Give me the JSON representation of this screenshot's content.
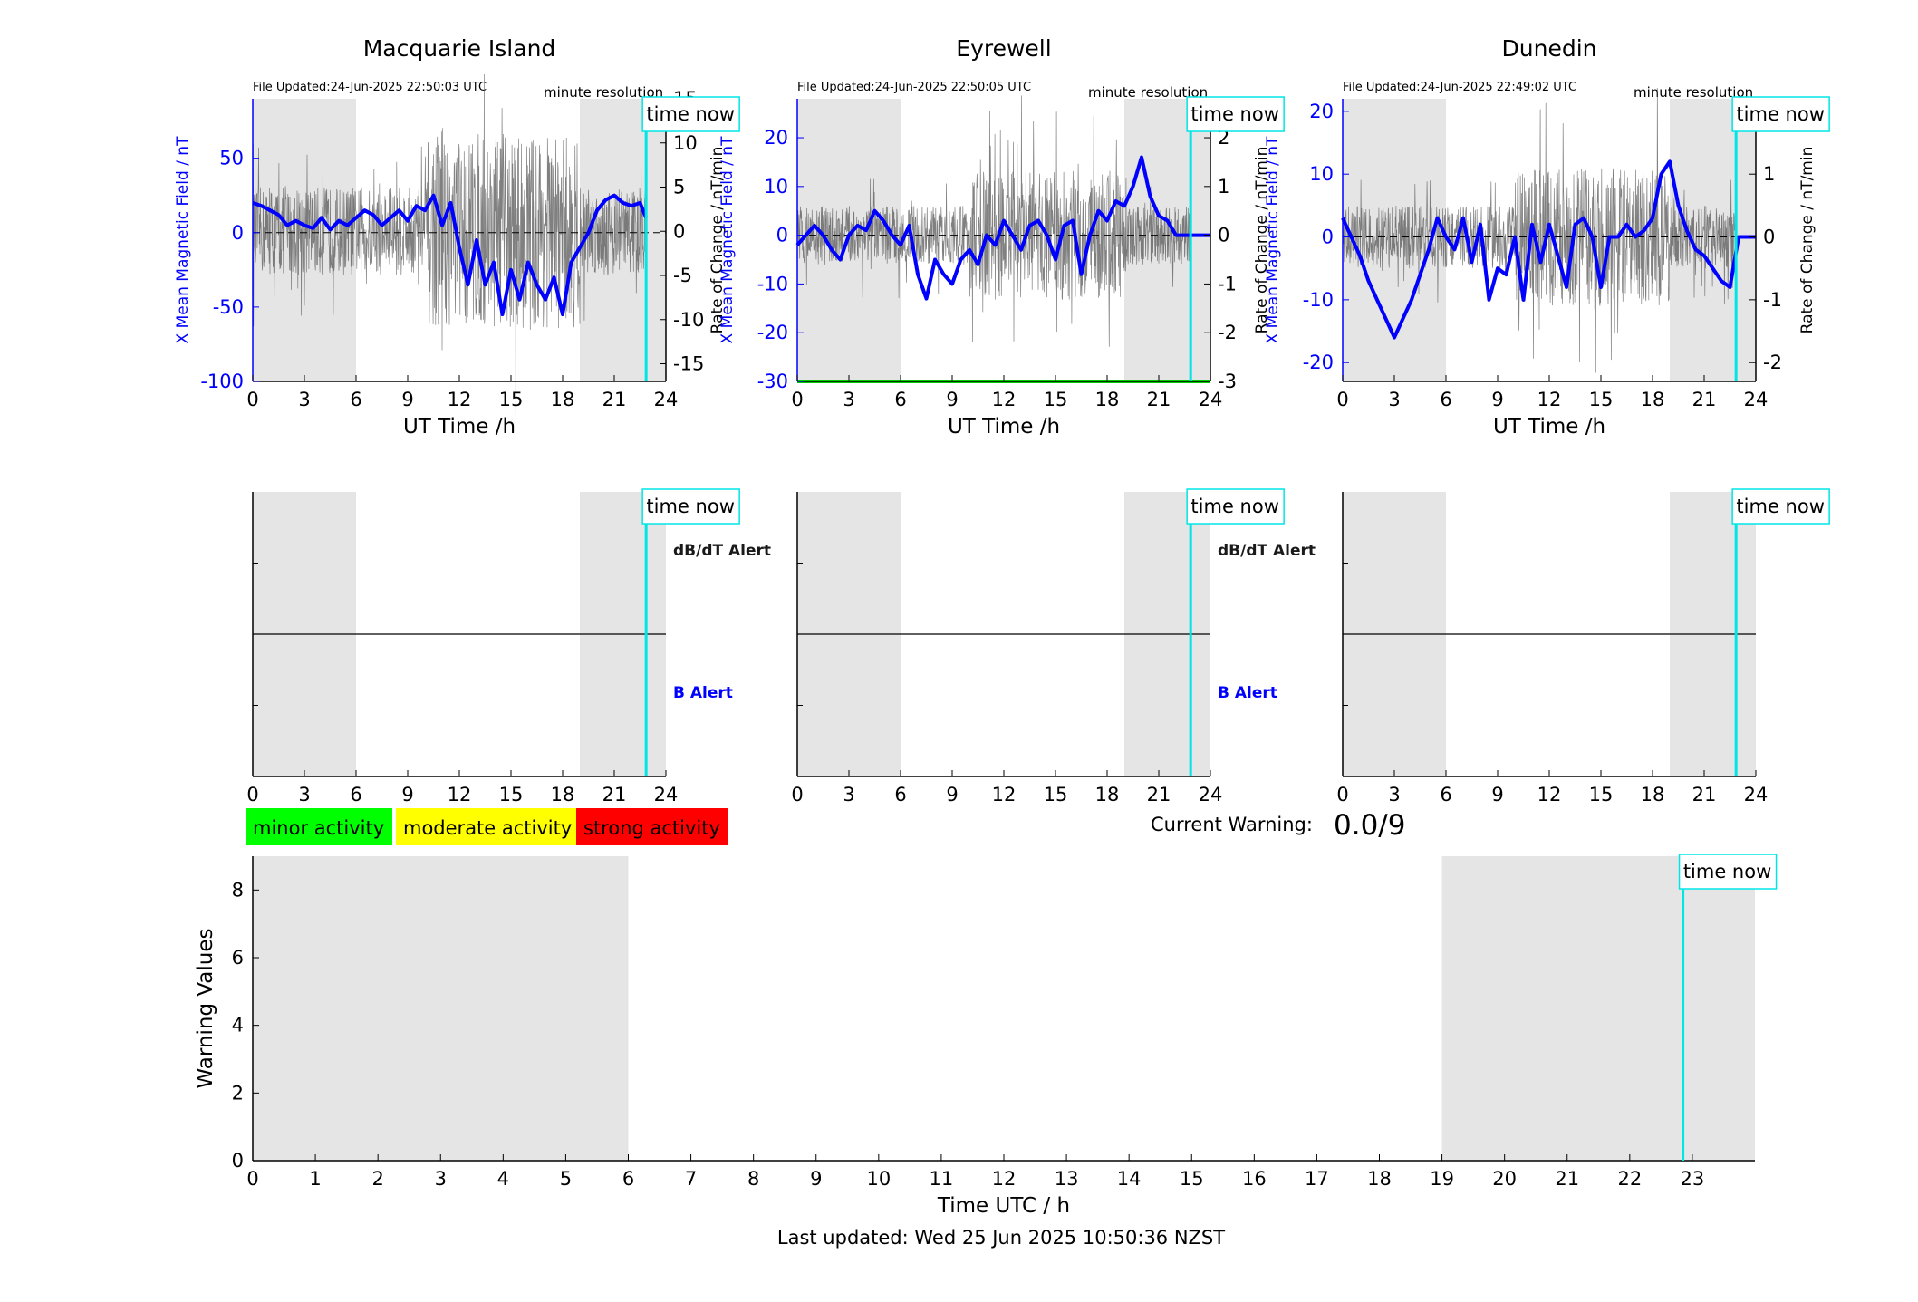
{
  "stations": [
    {
      "name": "Macquarie Island",
      "file_updated": "File Updated:24-Jun-2025 22:50:03 UTC",
      "resolution": "minute resolution",
      "left_ylabel": "X Mean Magnetic Field / nT",
      "right_ylabel": "Rate of Change / nT/min",
      "left_ylim": [
        -100,
        90
      ],
      "left_ticks": [
        -100,
        -50,
        0,
        50
      ],
      "right_ylim": [
        -17,
        15
      ],
      "right_ticks": [
        -15,
        -10,
        -5,
        0,
        5,
        10,
        15
      ],
      "x_series_hours": [
        0,
        0.5,
        1,
        1.5,
        2,
        2.5,
        3,
        3.5,
        4,
        4.5,
        5,
        5.5,
        6,
        6.5,
        7,
        7.5,
        8,
        8.5,
        9,
        9.5,
        10,
        10.5,
        11,
        11.5,
        12,
        12.5,
        13,
        13.5,
        14,
        14.5,
        15,
        15.5,
        16,
        16.5,
        17,
        17.5,
        18,
        18.5,
        19,
        19.5,
        20,
        20.5,
        21,
        21.5,
        22,
        22.5,
        22.85
      ],
      "x_series_values": [
        20,
        18,
        15,
        12,
        5,
        8,
        5,
        3,
        10,
        2,
        8,
        5,
        10,
        15,
        12,
        5,
        10,
        15,
        8,
        18,
        15,
        25,
        5,
        20,
        -10,
        -35,
        -5,
        -35,
        -20,
        -55,
        -25,
        -45,
        -20,
        -35,
        -45,
        -30,
        -55,
        -20,
        -10,
        0,
        15,
        22,
        25,
        20,
        18,
        20,
        10
      ],
      "roc_amplitude": 5,
      "green_line": false
    },
    {
      "name": "Eyrewell",
      "file_updated": "File Updated:24-Jun-2025 22:50:05 UTC",
      "resolution": "minute resolution",
      "left_ylabel": "X Mean Magnetic Field / nT",
      "right_ylabel": "Rate of Change / nT/min",
      "left_ylim": [
        -30,
        28
      ],
      "left_ticks": [
        -30,
        -20,
        -10,
        0,
        10,
        20
      ],
      "right_ylim": [
        -3,
        2.8
      ],
      "right_ticks": [
        -3,
        -2,
        -1,
        0,
        1,
        2
      ],
      "x_series_hours": [
        0,
        0.5,
        1,
        1.5,
        2,
        2.5,
        3,
        3.5,
        4,
        4.5,
        5,
        5.5,
        6,
        6.5,
        7,
        7.5,
        8,
        8.5,
        9,
        9.5,
        10,
        10.5,
        11,
        11.5,
        12,
        12.5,
        13,
        13.5,
        14,
        14.5,
        15,
        15.5,
        16,
        16.5,
        17,
        17.5,
        18,
        18.5,
        19,
        19.5,
        20,
        20.5,
        21,
        21.5,
        22,
        22.5,
        23,
        24
      ],
      "x_series_values": [
        -2,
        0,
        2,
        0,
        -3,
        -5,
        0,
        2,
        1,
        5,
        3,
        0,
        -2,
        2,
        -8,
        -13,
        -5,
        -8,
        -10,
        -5,
        -3,
        -6,
        0,
        -2,
        3,
        0,
        -3,
        2,
        3,
        0,
        -5,
        2,
        3,
        -8,
        0,
        5,
        3,
        7,
        6,
        10,
        16,
        8,
        4,
        3,
        0,
        0,
        0,
        0
      ],
      "roc_amplitude": 0.6,
      "green_line": true
    },
    {
      "name": "Dunedin",
      "file_updated": "File Updated:24-Jun-2025 22:49:02 UTC",
      "resolution": "minute resolution",
      "left_ylabel": "X Mean Magnetic Field / nT",
      "right_ylabel": "Rate of Change / nT/min",
      "left_ylim": [
        -23,
        22
      ],
      "left_ticks": [
        -20,
        -10,
        0,
        10,
        20
      ],
      "right_ylim": [
        -2.3,
        2.2
      ],
      "right_ticks": [
        -2,
        -1,
        0,
        1,
        2
      ],
      "x_series_hours": [
        0,
        0.5,
        1,
        1.5,
        2,
        2.5,
        3,
        3.5,
        4,
        4.5,
        5,
        5.5,
        6,
        6.5,
        7,
        7.5,
        8,
        8.5,
        9,
        9.5,
        10,
        10.5,
        11,
        11.5,
        12,
        12.5,
        13,
        13.5,
        14,
        14.5,
        15,
        15.5,
        16,
        16.5,
        17,
        17.5,
        18,
        18.5,
        19,
        19.5,
        20,
        20.5,
        21,
        21.5,
        22,
        22.5,
        23,
        24
      ],
      "x_series_values": [
        3,
        0,
        -3,
        -7,
        -10,
        -13,
        -16,
        -13,
        -10,
        -6,
        -2,
        3,
        0,
        -2,
        3,
        -4,
        2,
        -10,
        -5,
        -6,
        0,
        -10,
        2,
        -4,
        2,
        -3,
        -8,
        2,
        3,
        0,
        -8,
        0,
        0,
        2,
        0,
        1,
        3,
        10,
        12,
        5,
        1,
        -2,
        -3,
        -5,
        -7,
        -8,
        0,
        0
      ],
      "roc_amplitude": 0.5,
      "green_line": false
    }
  ],
  "common": {
    "xlabel": "UT Time /h",
    "xticks": [
      0,
      3,
      6,
      9,
      12,
      15,
      18,
      21,
      24
    ],
    "night_shading_hours": [
      [
        0,
        6
      ],
      [
        19,
        24
      ]
    ],
    "time_now_hours": 22.85,
    "time_now_label": "time now"
  },
  "alert_panels": {
    "dbdt_label": "dB/dT Alert",
    "b_label": "B Alert"
  },
  "legend": [
    {
      "label": "minor activity",
      "color": "#00ff00"
    },
    {
      "label": "moderate activity",
      "color": "#ffff00"
    },
    {
      "label": "strong activity",
      "color": "#ff0000"
    }
  ],
  "current_warning": {
    "label": "Current Warning:",
    "value": "0.0/9"
  },
  "chart_data": {
    "type": "bar",
    "title": "",
    "xlabel": "Time UTC / h",
    "ylabel": "Warning Values",
    "categories": [
      0,
      1,
      2,
      3,
      4,
      5,
      6,
      7,
      8,
      9,
      10,
      11,
      12,
      13,
      14,
      15,
      16,
      17,
      18,
      19,
      20,
      21,
      22,
      23
    ],
    "values": [
      0,
      0,
      0,
      0,
      0,
      0,
      0,
      0,
      0,
      0,
      0,
      0,
      0,
      0,
      0,
      0,
      0,
      0,
      0,
      0,
      0,
      0,
      0,
      0
    ],
    "xlim": [
      0,
      24
    ],
    "ylim": [
      0,
      9
    ],
    "yticks": [
      0,
      2,
      4,
      6,
      8
    ],
    "night_shading_hours": [
      [
        0,
        6
      ],
      [
        19,
        24
      ]
    ],
    "time_now_hours": 22.85,
    "grid": false,
    "legend": "none"
  },
  "footer": "Last updated: Wed 25 Jun 2025 10:50:36 NZST"
}
